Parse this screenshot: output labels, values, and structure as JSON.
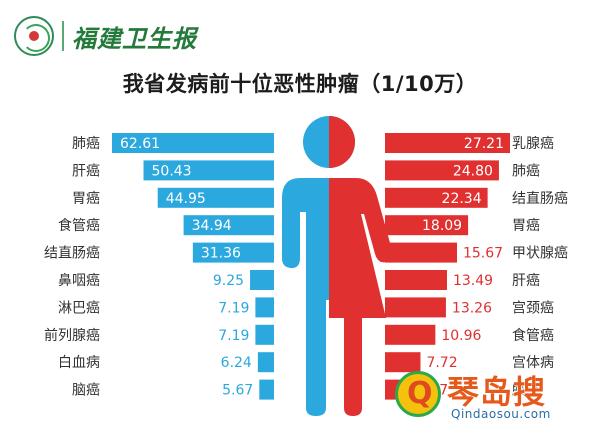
{
  "header": {
    "brand": "福建卫生报",
    "logo_icon": "health-emblem-icon"
  },
  "chart_data": {
    "type": "bar",
    "title": "我省发病前十位恶性肿瘤（1/10万）",
    "series": [
      {
        "name": "",
        "color": "#2ba8de",
        "categories": [
          "肺癌",
          "肝癌",
          "胃癌",
          "食管癌",
          "结直肠癌",
          "鼻咽癌",
          "淋巴癌",
          "前列腺癌",
          "白血病",
          "脑癌"
        ],
        "values": [
          62.61,
          50.43,
          44.95,
          34.94,
          31.36,
          9.25,
          7.19,
          7.19,
          6.24,
          5.67
        ]
      },
      {
        "name": "",
        "color": "#e03030",
        "categories": [
          "乳腺癌",
          "肺癌",
          "结直肠癌",
          "胃癌",
          "甲状腺癌",
          "肝癌",
          "宫颈癌",
          "食管癌",
          "宫体病",
          "脑癌"
        ],
        "values": [
          27.21,
          24.8,
          22.34,
          18.09,
          15.67,
          13.49,
          13.26,
          10.96,
          7.72,
          5.67
        ]
      }
    ],
    "figure": {
      "left_color": "#2ba8de",
      "right_color": "#e03030",
      "icon": "male-female-figure-icon"
    }
  },
  "watermark": {
    "text": "琴岛搜",
    "url": "Qindaosou.com",
    "icon": "q-logo-icon"
  }
}
